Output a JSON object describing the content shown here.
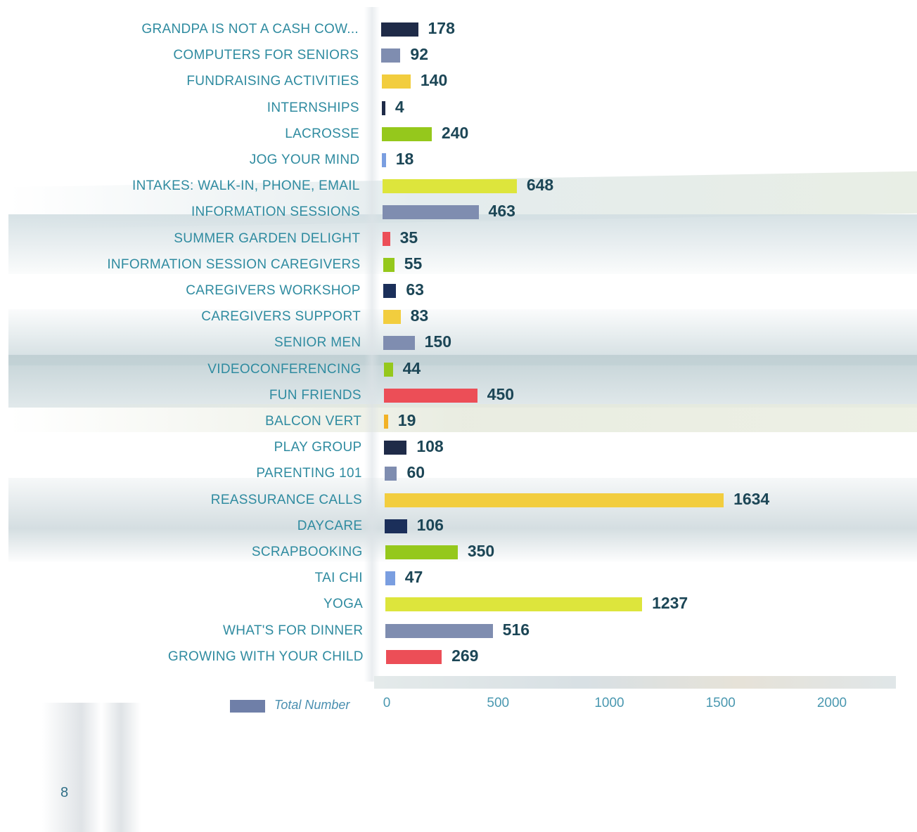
{
  "page_number": "8",
  "colors": {
    "navy": "#1f2b48",
    "slate": "#7f8db0",
    "gold": "#f2cd3e",
    "green": "#95c81c",
    "lightblue": "#7a9ee0",
    "lime": "#dde53c",
    "red": "#ec4e57",
    "orange": "#f2b226",
    "darkblue": "#1b2f5a",
    "legend": "#6f7fa8"
  },
  "chart_data": {
    "type": "bar",
    "orientation": "horizontal",
    "title": "",
    "xlabel": "",
    "ylabel": "",
    "xlim": [
      0,
      2300
    ],
    "xticks": [
      0,
      500,
      1000,
      1500,
      2000
    ],
    "grid": false,
    "legend": {
      "position": "bottom-left",
      "entries": [
        "Total Number"
      ]
    },
    "categories": [
      "GRANDPA IS NOT A CASH COW...",
      "COMPUTERS FOR SENIORS",
      "FUNDRAISING ACTIVITIES",
      "INTERNSHIPS",
      "LACROSSE",
      "JOG YOUR MIND",
      "INTAKES: WALK-IN, PHONE, EMAIL",
      "INFORMATION SESSIONS",
      "SUMMER GARDEN DELIGHT",
      "INFORMATION SESSION CAREGIVERS",
      "CAREGIVERS WORKSHOP",
      "CAREGIVERS SUPPORT",
      "SENIOR MEN",
      "VIDEOCONFERENCING",
      "FUN FRIENDS",
      "BALCON VERT",
      "PLAY GROUP",
      "PARENTING 101",
      "REASSURANCE CALLS",
      "DAYCARE",
      "SCRAPBOOKING",
      "TAI CHI",
      "YOGA",
      "WHAT'S FOR DINNER",
      "GROWING WITH YOUR CHILD"
    ],
    "series": [
      {
        "name": "Total Number",
        "values": [
          178,
          92,
          140,
          4,
          240,
          18,
          648,
          463,
          35,
          55,
          63,
          83,
          150,
          44,
          450,
          19,
          108,
          60,
          1634,
          106,
          350,
          47,
          1237,
          516,
          269
        ]
      }
    ],
    "bar_colors": [
      "navy",
      "slate",
      "gold",
      "navy",
      "green",
      "lightblue",
      "lime",
      "slate",
      "red",
      "green",
      "darkblue",
      "gold",
      "slate",
      "green",
      "red",
      "orange",
      "navy",
      "slate",
      "gold",
      "darkblue",
      "green",
      "lightblue",
      "lime",
      "slate",
      "red"
    ]
  }
}
